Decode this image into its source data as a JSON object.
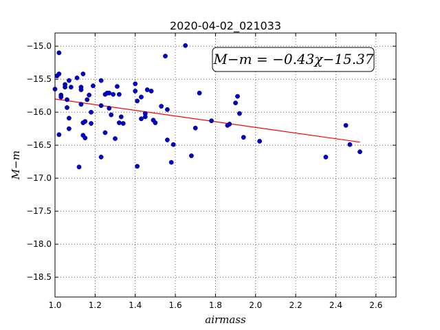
{
  "chart_data": {
    "type": "scatter",
    "title": "2020-04-02_021033",
    "xlabel": "airmass",
    "ylabel": "M−m",
    "xlim": [
      1.0,
      2.7
    ],
    "ylim": [
      -18.8,
      -14.8
    ],
    "y_inverted": false,
    "grid": true,
    "grid_style": "dotted",
    "xticks": [
      1.0,
      1.2,
      1.4,
      1.6,
      1.8,
      2.0,
      2.2,
      2.4,
      2.6
    ],
    "xtick_labels": [
      "1.0",
      "1.2",
      "1.4",
      "1.6",
      "1.8",
      "2.0",
      "2.2",
      "2.4",
      "2.6"
    ],
    "yticks": [
      -15.0,
      -15.5,
      -16.0,
      -16.5,
      -17.0,
      -17.5,
      -18.0,
      -18.5
    ],
    "ytick_labels": [
      "−15.0",
      "−15.5",
      "−16.0",
      "−16.5",
      "−17.0",
      "−17.5",
      "−18.0",
      "−18.5"
    ],
    "annotation": "M−m = −0.43χ−15.37",
    "colors": {
      "points": "#0000cc",
      "fit_line": "#ff0000"
    },
    "fit_line": {
      "slope": -0.43,
      "intercept": -15.37,
      "x_range": [
        1.0,
        2.52
      ]
    },
    "points": [
      [
        1.0,
        -15.65
      ],
      [
        1.01,
        -15.45
      ],
      [
        1.02,
        -15.42
      ],
      [
        1.02,
        -15.1
      ],
      [
        1.02,
        -16.34
      ],
      [
        1.03,
        -15.74
      ],
      [
        1.03,
        -15.77
      ],
      [
        1.05,
        -15.62
      ],
      [
        1.05,
        -15.58
      ],
      [
        1.06,
        -15.81
      ],
      [
        1.06,
        -15.93
      ],
      [
        1.07,
        -15.52
      ],
      [
        1.07,
        -16.09
      ],
      [
        1.07,
        -16.25
      ],
      [
        1.08,
        -15.62
      ],
      [
        1.11,
        -15.48
      ],
      [
        1.12,
        -16.83
      ],
      [
        1.13,
        -15.62
      ],
      [
        1.13,
        -15.66
      ],
      [
        1.13,
        -15.88
      ],
      [
        1.14,
        -15.42
      ],
      [
        1.14,
        -16.16
      ],
      [
        1.14,
        -16.35
      ],
      [
        1.15,
        -16.14
      ],
      [
        1.15,
        -16.39
      ],
      [
        1.16,
        -15.81
      ],
      [
        1.17,
        -15.74
      ],
      [
        1.18,
        -16.0
      ],
      [
        1.18,
        -16.17
      ],
      [
        1.19,
        -15.6
      ],
      [
        1.23,
        -15.52
      ],
      [
        1.23,
        -15.9
      ],
      [
        1.23,
        -16.68
      ],
      [
        1.25,
        -15.73
      ],
      [
        1.25,
        -16.31
      ],
      [
        1.26,
        -15.71
      ],
      [
        1.27,
        -15.71
      ],
      [
        1.27,
        -15.94
      ],
      [
        1.28,
        -16.04
      ],
      [
        1.29,
        -15.73
      ],
      [
        1.3,
        -16.4
      ],
      [
        1.31,
        -15.61
      ],
      [
        1.32,
        -15.73
      ],
      [
        1.32,
        -16.16
      ],
      [
        1.33,
        -16.07
      ],
      [
        1.34,
        -16.17
      ],
      [
        1.4,
        -15.68
      ],
      [
        1.4,
        -15.57
      ],
      [
        1.41,
        -15.83
      ],
      [
        1.41,
        -16.82
      ],
      [
        1.43,
        -16.1
      ],
      [
        1.43,
        -15.77
      ],
      [
        1.45,
        -16.02
      ],
      [
        1.45,
        -16.07
      ],
      [
        1.46,
        -15.66
      ],
      [
        1.48,
        -15.68
      ],
      [
        1.49,
        -16.12
      ],
      [
        1.5,
        -16.16
      ],
      [
        1.53,
        -15.91
      ],
      [
        1.55,
        -15.15
      ],
      [
        1.56,
        -15.96
      ],
      [
        1.56,
        -16.42
      ],
      [
        1.58,
        -16.76
      ],
      [
        1.59,
        -16.49
      ],
      [
        1.65,
        -14.99
      ],
      [
        1.68,
        -16.66
      ],
      [
        1.7,
        -16.24
      ],
      [
        1.72,
        -15.71
      ],
      [
        1.78,
        -16.13
      ],
      [
        1.86,
        -16.2
      ],
      [
        1.87,
        -16.18
      ],
      [
        1.9,
        -15.86
      ],
      [
        1.91,
        -15.76
      ],
      [
        1.92,
        -16.02
      ],
      [
        1.94,
        -16.38
      ],
      [
        2.02,
        -16.44
      ],
      [
        2.35,
        -16.68
      ],
      [
        2.45,
        -16.2
      ],
      [
        2.47,
        -16.49
      ],
      [
        2.52,
        -16.6
      ]
    ]
  }
}
